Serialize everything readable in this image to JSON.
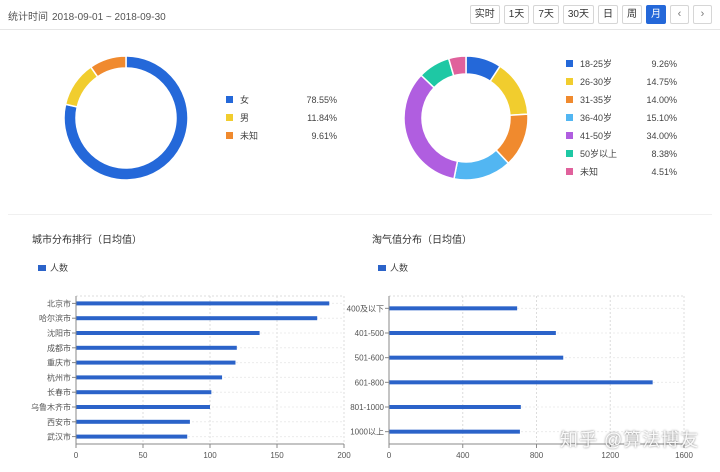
{
  "header": {
    "date_label": "统计时间",
    "date_range": "2018-09-01 ~ 2018-09-30",
    "buttons": [
      {
        "label": "实时",
        "active": false
      },
      {
        "label": "1天",
        "active": false
      },
      {
        "label": "7天",
        "active": false
      },
      {
        "label": "30天",
        "active": false
      },
      {
        "label": "日",
        "active": false
      },
      {
        "label": "周",
        "active": false
      },
      {
        "label": "月",
        "active": true
      }
    ],
    "prev_icon": "chevron-left-icon",
    "next_icon": "chevron-right-icon"
  },
  "watermark": "知乎 @算法博友",
  "chart_data": [
    {
      "type": "pie",
      "variant": "donut",
      "title": "",
      "legend_position": "right",
      "labels": [
        "女",
        "男",
        "未知"
      ],
      "values": [
        78.55,
        11.84,
        9.61
      ],
      "display_values": [
        "78.55%",
        "11.84%",
        "9.61%"
      ],
      "colors": [
        "#2468d9",
        "#f1cd2e",
        "#f08a2e"
      ]
    },
    {
      "type": "pie",
      "variant": "donut",
      "title": "",
      "legend_position": "right",
      "labels": [
        "18-25岁",
        "26-30岁",
        "31-35岁",
        "36-40岁",
        "41-50岁",
        "50岁以上",
        "未知"
      ],
      "values": [
        9.26,
        14.75,
        14.0,
        15.1,
        34.0,
        8.38,
        4.51
      ],
      "display_values": [
        "9.26%",
        "14.75%",
        "14.00%",
        "15.10%",
        "34.00%",
        "8.38%",
        "4.51%"
      ],
      "colors": [
        "#2468d9",
        "#f1cd2e",
        "#f08a2e",
        "#52b6f2",
        "#b05ee0",
        "#1ec8a4",
        "#e0619c"
      ]
    },
    {
      "type": "bar",
      "orientation": "horizontal",
      "title": "城市分布排行（日均值）",
      "series": [
        {
          "name": "人数",
          "color": "#2b63c9",
          "values": [
            189,
            180,
            137,
            120,
            119,
            109,
            101,
            100,
            85,
            83
          ]
        }
      ],
      "categories": [
        "北京市",
        "哈尔滨市",
        "沈阳市",
        "成都市",
        "重庆市",
        "杭州市",
        "长春市",
        "乌鲁木齐市",
        "西安市",
        "武汉市"
      ],
      "xlim": [
        0,
        200
      ],
      "xticks": [
        0,
        50,
        100,
        150,
        200
      ],
      "grid": true,
      "legend_position": "top-left"
    },
    {
      "type": "bar",
      "orientation": "horizontal",
      "title": "淘气值分布（日均值）",
      "series": [
        {
          "name": "人数",
          "color": "#2b63c9",
          "values": [
            695,
            905,
            945,
            1430,
            715,
            710
          ]
        }
      ],
      "categories": [
        "400及以下",
        "401-500",
        "501-600",
        "601-800",
        "801-1000",
        "1000以上"
      ],
      "xlim": [
        0,
        1600
      ],
      "xticks": [
        0,
        400,
        800,
        1200,
        1600
      ],
      "grid": true,
      "legend_position": "top-left"
    }
  ]
}
